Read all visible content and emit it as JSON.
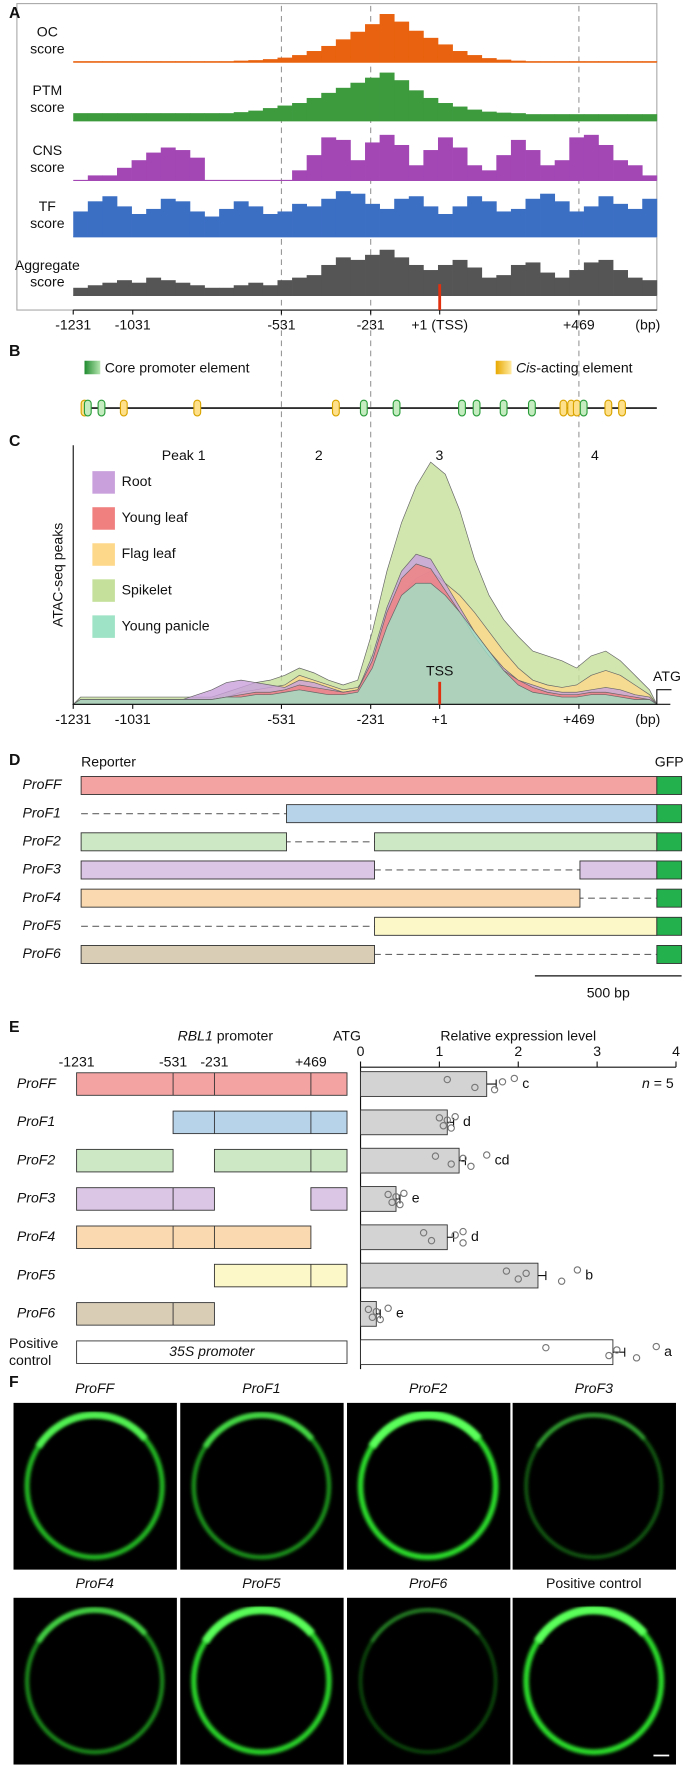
{
  "panel_labels": [
    "A",
    "B",
    "C",
    "D",
    "E",
    "F"
  ],
  "genome": {
    "xlim": [
      -1231,
      731
    ],
    "unit": "(bp)"
  },
  "a": {
    "xticks": [
      -1231,
      -1031,
      -531,
      -231,
      {
        "value": 1,
        "label": "+1 (TSS)"
      },
      {
        "value": 469,
        "label": "+469"
      }
    ],
    "tracks": [
      {
        "name": [
          "OC",
          "score"
        ],
        "color": "#e8620f",
        "values": [
          0.02,
          0.02,
          0.02,
          0.02,
          0.02,
          0.02,
          0.02,
          0.02,
          0.02,
          0.02,
          0.02,
          0.03,
          0.04,
          0.06,
          0.09,
          0.14,
          0.22,
          0.32,
          0.45,
          0.6,
          0.75,
          0.95,
          0.8,
          0.62,
          0.48,
          0.35,
          0.22,
          0.14,
          0.08,
          0.05,
          0.03,
          0.02,
          0.02,
          0.02,
          0.02,
          0.02,
          0.02,
          0.02,
          0.02,
          0.02
        ]
      },
      {
        "name": [
          "PTM",
          "score"
        ],
        "color": "#3d9a3d",
        "values": [
          0.15,
          0.15,
          0.15,
          0.15,
          0.15,
          0.15,
          0.15,
          0.15,
          0.15,
          0.15,
          0.15,
          0.17,
          0.2,
          0.25,
          0.3,
          0.35,
          0.45,
          0.55,
          0.65,
          0.75,
          0.85,
          0.95,
          0.8,
          0.6,
          0.45,
          0.35,
          0.28,
          0.22,
          0.18,
          0.16,
          0.15,
          0.13,
          0.13,
          0.13,
          0.13,
          0.13,
          0.13,
          0.13,
          0.13,
          0.13
        ]
      },
      {
        "name": [
          "CNS",
          "score"
        ],
        "color": "#a347b5",
        "values": [
          0,
          0.1,
          0.1,
          0.25,
          0.4,
          0.55,
          0.65,
          0.6,
          0.45,
          0,
          0,
          0,
          0,
          0,
          0,
          0.2,
          0.5,
          0.85,
          0.8,
          0.4,
          0.75,
          0.9,
          0.7,
          0.3,
          0.6,
          0.85,
          0.65,
          0.3,
          0.2,
          0.5,
          0.8,
          0.6,
          0.3,
          0.4,
          0.85,
          0.9,
          0.7,
          0.4,
          0.3,
          0.1
        ]
      },
      {
        "name": [
          "TF",
          "score"
        ],
        "color": "#3b6fc4",
        "values": [
          0.5,
          0.7,
          0.8,
          0.6,
          0.45,
          0.55,
          0.75,
          0.7,
          0.5,
          0.4,
          0.55,
          0.7,
          0.6,
          0.45,
          0.5,
          0.65,
          0.6,
          0.75,
          0.9,
          0.85,
          0.65,
          0.55,
          0.75,
          0.8,
          0.6,
          0.45,
          0.6,
          0.8,
          0.7,
          0.5,
          0.55,
          0.75,
          0.85,
          0.7,
          0.5,
          0.6,
          0.8,
          0.65,
          0.55,
          0.75
        ]
      },
      {
        "name": [
          "Aggregate",
          "score"
        ],
        "color": "#555555",
        "values": [
          0.15,
          0.2,
          0.25,
          0.3,
          0.25,
          0.35,
          0.3,
          0.25,
          0.2,
          0.15,
          0.15,
          0.2,
          0.25,
          0.2,
          0.3,
          0.35,
          0.4,
          0.6,
          0.75,
          0.7,
          0.8,
          0.9,
          0.75,
          0.6,
          0.5,
          0.6,
          0.7,
          0.55,
          0.35,
          0.4,
          0.6,
          0.65,
          0.45,
          0.35,
          0.5,
          0.65,
          0.7,
          0.5,
          0.35,
          0.3
        ]
      }
    ]
  },
  "b": {
    "legend": [
      {
        "name": [
          "Core promoter element"
        ],
        "color": "#3cb44b"
      },
      {
        "name": [
          "Cis",
          "-acting element"
        ],
        "color": "#f5c518"
      }
    ],
    "core_positions": [
      -1182,
      -1136,
      -254,
      -144,
      76,
      125,
      216,
      311,
      485
    ],
    "cis_positions": [
      -1193,
      -1061,
      -814,
      -348,
      417,
      443,
      462,
      568,
      614
    ]
  },
  "c": {
    "ylabel": "ATAC-seq peaks",
    "peaks": [
      "Peak 1",
      "2",
      "3",
      "4"
    ],
    "tss": "TSS",
    "atg": "ATG",
    "xticks": [
      -1231,
      -1031,
      -531,
      -231,
      {
        "value": 1,
        "label": "+1"
      },
      {
        "value": 469,
        "label": "+469"
      }
    ],
    "series": [
      {
        "name": "Root",
        "color": "#c9a0dc",
        "values": [
          0.02,
          0.02,
          0.02,
          0.02,
          0.02,
          0.02,
          0.02,
          0.02,
          0.04,
          0.06,
          0.09,
          0.1,
          0.09,
          0.08,
          0.07,
          0.1,
          0.09,
          0.07,
          0.05,
          0.06,
          0.2,
          0.4,
          0.55,
          0.62,
          0.6,
          0.5,
          0.4,
          0.3,
          0.22,
          0.15,
          0.1,
          0.08,
          0.06,
          0.05,
          0.05,
          0.06,
          0.07,
          0.06,
          0.04,
          0.03
        ]
      },
      {
        "name": "Young leaf",
        "color": "#f08080",
        "values": [
          0.02,
          0.02,
          0.02,
          0.02,
          0.02,
          0.02,
          0.02,
          0.02,
          0.02,
          0.02,
          0.03,
          0.04,
          0.05,
          0.05,
          0.06,
          0.08,
          0.07,
          0.06,
          0.05,
          0.06,
          0.18,
          0.38,
          0.52,
          0.58,
          0.56,
          0.47,
          0.38,
          0.28,
          0.2,
          0.14,
          0.1,
          0.07,
          0.05,
          0.04,
          0.04,
          0.05,
          0.05,
          0.04,
          0.03,
          0.02
        ]
      },
      {
        "name": "Flag leaf",
        "color": "#fdd88a",
        "values": [
          0.02,
          0.02,
          0.02,
          0.02,
          0.02,
          0.02,
          0.02,
          0.02,
          0.02,
          0.02,
          0.03,
          0.05,
          0.06,
          0.07,
          0.08,
          0.12,
          0.1,
          0.08,
          0.06,
          0.07,
          0.15,
          0.3,
          0.45,
          0.52,
          0.55,
          0.5,
          0.45,
          0.38,
          0.3,
          0.22,
          0.15,
          0.1,
          0.08,
          0.07,
          0.08,
          0.12,
          0.14,
          0.12,
          0.08,
          0.04
        ]
      },
      {
        "name": "Spikelet",
        "color": "#c5e09b",
        "values": [
          0.03,
          0.03,
          0.03,
          0.03,
          0.03,
          0.03,
          0.03,
          0.03,
          0.03,
          0.03,
          0.05,
          0.07,
          0.09,
          0.1,
          0.12,
          0.15,
          0.13,
          0.1,
          0.08,
          0.1,
          0.3,
          0.55,
          0.75,
          0.9,
          1.0,
          0.95,
          0.8,
          0.6,
          0.45,
          0.35,
          0.28,
          0.22,
          0.2,
          0.18,
          0.15,
          0.2,
          0.22,
          0.18,
          0.12,
          0.06
        ]
      },
      {
        "name": "Young panicle",
        "color": "#9fe3c6",
        "values": [
          0.02,
          0.02,
          0.02,
          0.02,
          0.02,
          0.02,
          0.02,
          0.02,
          0.02,
          0.02,
          0.03,
          0.03,
          0.04,
          0.04,
          0.05,
          0.06,
          0.05,
          0.04,
          0.04,
          0.05,
          0.15,
          0.32,
          0.45,
          0.5,
          0.5,
          0.45,
          0.38,
          0.3,
          0.22,
          0.14,
          0.08,
          0.05,
          0.04,
          0.03,
          0.03,
          0.04,
          0.04,
          0.03,
          0.02,
          0.02
        ]
      }
    ]
  },
  "d": {
    "reporter": "Reporter",
    "gfp": "GFP",
    "scale_bar": {
      "value": 500,
      "label": "500 bp"
    },
    "constructs": [
      {
        "name": "ProFF",
        "color": "#f4a3a3",
        "segments": [
          [
            -1231,
            731
          ]
        ]
      },
      {
        "name": "ProF1",
        "color": "#b7d3ea",
        "segments": [
          [
            -531,
            731
          ]
        ]
      },
      {
        "name": "ProF2",
        "color": "#cde8c4",
        "segments": [
          [
            -1231,
            -531
          ],
          [
            -231,
            731
          ]
        ]
      },
      {
        "name": "ProF3",
        "color": "#dcc6e6",
        "segments": [
          [
            -1231,
            -231
          ],
          [
            469,
            731
          ]
        ]
      },
      {
        "name": "ProF4",
        "color": "#fbd9b0",
        "segments": [
          [
            -1231,
            469
          ]
        ]
      },
      {
        "name": "ProF5",
        "color": "#fdf8c8",
        "segments": [
          [
            -231,
            731
          ]
        ]
      },
      {
        "name": "ProF6",
        "color": "#d9cdb6",
        "segments": [
          [
            -1231,
            -231
          ]
        ]
      }
    ]
  },
  "e": {
    "promoter_label": [
      "RBL1",
      " promoter"
    ],
    "atg": "ATG",
    "xticks": [
      -1231,
      -531,
      -231,
      {
        "value": 469,
        "label": "+469"
      }
    ],
    "xlabel": "Relative expression level",
    "xlim": [
      0,
      4
    ],
    "vticks": [
      0,
      1,
      2,
      3,
      4
    ],
    "n_label": [
      "n",
      " = 5"
    ],
    "positive": {
      "name": [
        "Positive",
        "control"
      ],
      "promoter": "35S promoter"
    },
    "values": [
      1.6,
      1.1,
      1.25,
      0.45,
      1.1,
      2.25,
      0.2,
      3.2
    ],
    "errors": [
      0.12,
      0.08,
      0.08,
      0.05,
      0.08,
      0.1,
      0.05,
      0.15
    ],
    "points": [
      [
        1.1,
        1.45,
        1.8,
        1.7,
        1.95
      ],
      [
        1.0,
        1.05,
        1.1,
        1.15,
        1.2
      ],
      [
        0.95,
        1.15,
        1.3,
        1.4,
        1.6
      ],
      [
        0.35,
        0.4,
        0.45,
        0.5,
        0.55
      ],
      [
        0.8,
        0.9,
        1.2,
        1.3,
        1.3
      ],
      [
        1.85,
        2.0,
        2.1,
        2.55,
        2.75
      ],
      [
        0.1,
        0.15,
        0.2,
        0.25,
        0.35
      ],
      [
        2.35,
        3.15,
        3.25,
        3.5,
        3.75
      ]
    ],
    "letters": [
      "c",
      "d",
      "cd",
      "e",
      "d",
      "b",
      "e",
      "a"
    ]
  },
  "f": {
    "positive_label": "Positive control"
  }
}
